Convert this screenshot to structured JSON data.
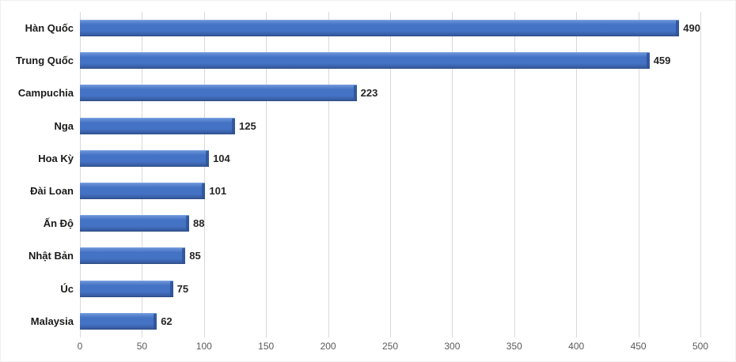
{
  "chart_data": {
    "type": "bar",
    "orientation": "horizontal",
    "title": "",
    "xlabel": "",
    "ylabel": "",
    "categories": [
      "Hàn Quốc",
      "Trung Quốc",
      "Campuchia",
      "Nga",
      "Hoa Kỳ",
      "Đài Loan",
      "Ấn Độ",
      "Nhật Bản",
      "Úc",
      "Malaysia"
    ],
    "values": [
      490,
      459,
      223,
      125,
      104,
      101,
      88,
      85,
      75,
      62
    ],
    "xlim": [
      0,
      500
    ],
    "xtick_step": 50,
    "xticks": [
      0,
      50,
      100,
      150,
      200,
      250,
      300,
      350,
      400,
      450,
      500
    ],
    "grid": true,
    "legend_position": "none",
    "bar_color": "#4472c4",
    "bar_shade_color": "#2f5496",
    "gridline_color": "#d9d9d9",
    "tick_label_color": "#595959",
    "category_label_color": "#1a1a1a"
  }
}
